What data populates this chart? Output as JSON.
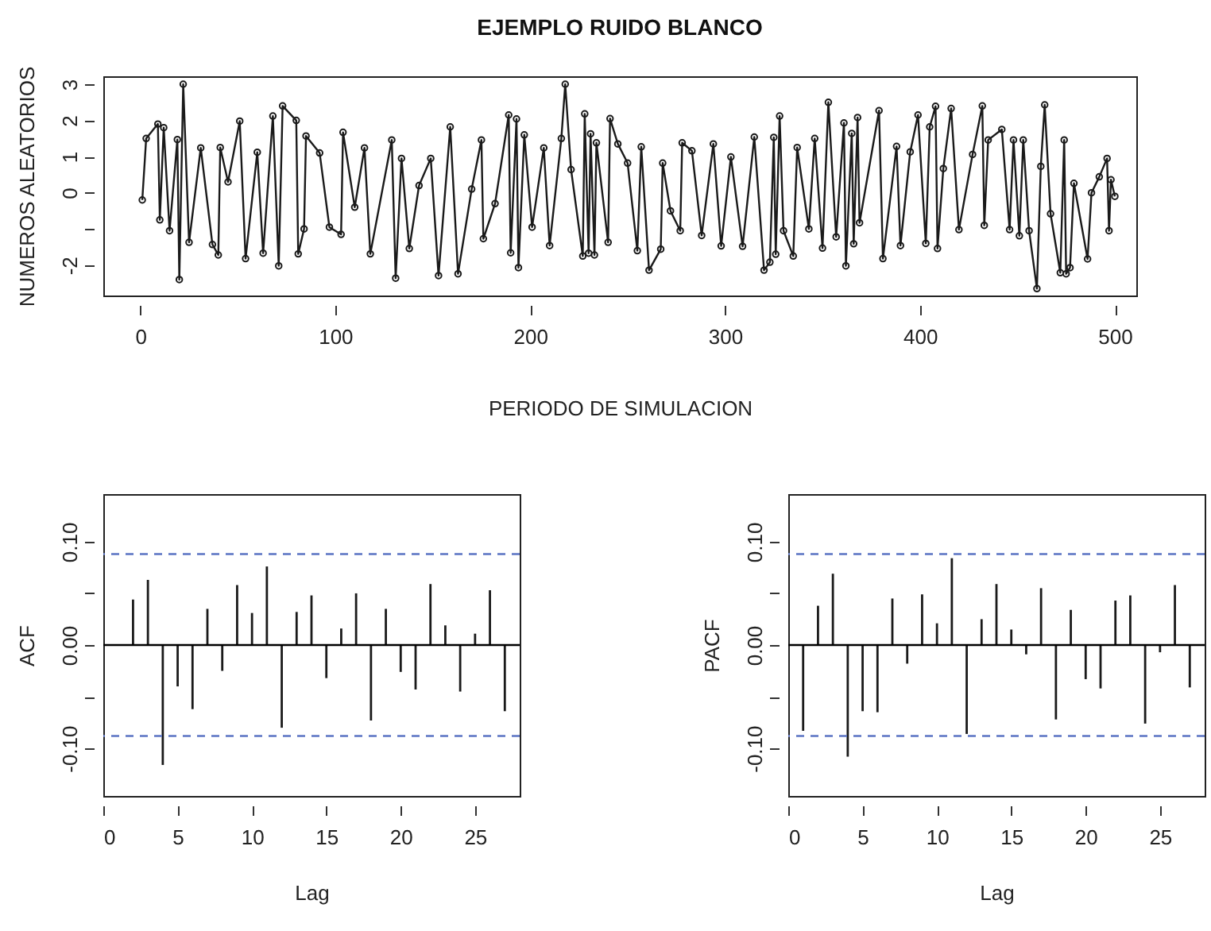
{
  "chart_data": [
    {
      "type": "line",
      "title": "EJEMPLO RUIDO BLANCO",
      "xlabel": "PERIODO DE SIMULACION",
      "ylabel": "NUMEROS ALEATORIOS",
      "color": "#1a1a1a",
      "marker": "circle",
      "line_style": "solid",
      "grid": false,
      "x": [
        1,
        3,
        9,
        10,
        12,
        15,
        19,
        20,
        22,
        25,
        31,
        37,
        40,
        41,
        45,
        51,
        54,
        60,
        63,
        68,
        71,
        73,
        80,
        81,
        84,
        85,
        92,
        97,
        103,
        104,
        110,
        115,
        118,
        129,
        131,
        134,
        138,
        143,
        149,
        153,
        159,
        163,
        170,
        175,
        176,
        182,
        189,
        190,
        193,
        194,
        197,
        201,
        207,
        210,
        216,
        218,
        221,
        227,
        228,
        230,
        231,
        233,
        234,
        240,
        241,
        245,
        250,
        255,
        257,
        261,
        267,
        268,
        272,
        277,
        278,
        283,
        288,
        294,
        298,
        303,
        309,
        315,
        320,
        323,
        325,
        326,
        328,
        330,
        335,
        337,
        343,
        346,
        350,
        353,
        357,
        361,
        362,
        365,
        366,
        368,
        369,
        379,
        381,
        388,
        390,
        395,
        399,
        403,
        405,
        408,
        409,
        412,
        416,
        420,
        427,
        432,
        433,
        435,
        442,
        446,
        448,
        451,
        453,
        456,
        460,
        462,
        464,
        467,
        472,
        474,
        475,
        477,
        479,
        486,
        488,
        492,
        496,
        497,
        498,
        500
      ],
      "values": [
        -0.2,
        1.5,
        1.9,
        -0.75,
        1.8,
        -1.05,
        1.47,
        -2.4,
        3.0,
        -1.37,
        1.24,
        -1.43,
        -1.72,
        1.25,
        0.3,
        1.98,
        -1.82,
        1.12,
        -1.67,
        2.12,
        -2.02,
        2.4,
        2.0,
        -1.69,
        -1.0,
        1.57,
        1.1,
        -0.95,
        -1.15,
        1.67,
        -0.4,
        1.24,
        -1.69,
        1.46,
        -2.36,
        0.95,
        -1.54,
        0.2,
        0.95,
        -2.29,
        1.82,
        -2.24,
        0.1,
        1.46,
        -1.27,
        -0.3,
        2.15,
        -1.66,
        2.04,
        -2.07,
        1.6,
        -0.95,
        1.24,
        -1.46,
        1.5,
        3.0,
        0.64,
        -1.75,
        2.18,
        -1.67,
        1.63,
        -1.72,
        1.38,
        -1.37,
        2.05,
        1.35,
        0.82,
        -1.6,
        1.27,
        -2.14,
        -1.56,
        0.82,
        -0.5,
        -1.05,
        1.38,
        1.16,
        -1.18,
        1.35,
        -1.47,
        0.99,
        -1.48,
        1.54,
        -2.14,
        -1.92,
        1.53,
        -1.7,
        2.12,
        -1.05,
        -1.75,
        1.25,
        -1.0,
        1.5,
        -1.53,
        2.5,
        -1.22,
        1.93,
        -2.02,
        1.64,
        -1.41,
        2.08,
        -0.83,
        2.27,
        -1.82,
        1.28,
        -1.46,
        1.13,
        2.15,
        -1.4,
        1.82,
        2.39,
        -1.54,
        0.67,
        2.33,
        -1.02,
        1.06,
        2.4,
        -0.9,
        1.46,
        1.75,
        -1.02,
        1.46,
        -1.19,
        1.46,
        -1.05,
        -2.65,
        0.73,
        2.43,
        -0.58,
        -2.21,
        1.46,
        -2.24,
        -2.07,
        0.26,
        -1.83,
        0,
        0.44,
        0.95,
        -1.05,
        0.36,
        -0.1
      ],
      "xlim": [
        -19,
        511
      ],
      "ylim": [
        -2.84,
        3.22
      ],
      "xticks": [
        0,
        100,
        200,
        300,
        400,
        500
      ],
      "yticks": [
        -2,
        {
          "value": -1,
          "label": null
        },
        0,
        1,
        2,
        3
      ]
    },
    {
      "type": "bar",
      "xlabel": "Lag",
      "ylabel": "ACF",
      "color": "#1a1a1a",
      "grid": false,
      "x": [
        2,
        3,
        4,
        5,
        6,
        7,
        8,
        9,
        10,
        11,
        12,
        13,
        14,
        15,
        16,
        17,
        18,
        19,
        20,
        21,
        22,
        23,
        24,
        25,
        26,
        27
      ],
      "values": [
        0.044,
        0.063,
        -0.116,
        -0.04,
        -0.062,
        0.035,
        -0.025,
        0.058,
        0.031,
        0.076,
        -0.08,
        0.032,
        0.048,
        -0.032,
        0.016,
        0.05,
        -0.073,
        0.035,
        -0.026,
        -0.043,
        0.059,
        0.019,
        -0.045,
        0.011,
        0.053,
        -0.064
      ],
      "xlim": [
        0,
        28
      ],
      "ylim": [
        -0.146,
        0.146
      ],
      "xticks": [
        0,
        5,
        10,
        15,
        20,
        25
      ],
      "yticks": [
        {
          "value": -0.1,
          "label": "-0.10"
        },
        {
          "value": -0.05,
          "label": null
        },
        {
          "value": 0,
          "label": "0.00"
        },
        {
          "value": 0.05,
          "label": null
        },
        {
          "value": 0.1,
          "label": "0.10"
        }
      ],
      "ref_lines": [
        {
          "axis": "y",
          "value": 0.088,
          "color": "#5b74c4",
          "line_style": "dashed"
        },
        {
          "axis": "y",
          "value": -0.088,
          "color": "#5b74c4",
          "line_style": "dashed"
        },
        {
          "axis": "y",
          "value": 0,
          "color": "#000000",
          "line_style": "solid"
        }
      ]
    },
    {
      "type": "bar",
      "xlabel": "Lag",
      "ylabel": "PACF",
      "color": "#1a1a1a",
      "grid": false,
      "x": [
        1,
        2,
        3,
        4,
        5,
        6,
        7,
        8,
        9,
        10,
        11,
        12,
        13,
        14,
        15,
        16,
        17,
        18,
        19,
        20,
        21,
        22,
        23,
        24,
        25,
        26,
        27
      ],
      "values": [
        -0.083,
        0.038,
        0.069,
        -0.108,
        -0.064,
        -0.065,
        0.045,
        -0.018,
        0.049,
        0.021,
        0.084,
        -0.086,
        0.025,
        0.059,
        0.015,
        -0.009,
        0.055,
        -0.072,
        0.034,
        -0.033,
        -0.042,
        0.043,
        0.048,
        -0.076,
        -0.007,
        0.058,
        -0.041
      ],
      "xlim": [
        0,
        28
      ],
      "ylim": [
        -0.146,
        0.146
      ],
      "xticks": [
        0,
        5,
        10,
        15,
        20,
        25
      ],
      "yticks": [
        {
          "value": -0.1,
          "label": "-0.10"
        },
        {
          "value": -0.05,
          "label": null
        },
        {
          "value": 0,
          "label": "0.00"
        },
        {
          "value": 0.05,
          "label": null
        },
        {
          "value": 0.1,
          "label": "0.10"
        }
      ],
      "ref_lines": [
        {
          "axis": "y",
          "value": 0.088,
          "color": "#5b74c4",
          "line_style": "dashed"
        },
        {
          "axis": "y",
          "value": -0.088,
          "color": "#5b74c4",
          "line_style": "dashed"
        },
        {
          "axis": "y",
          "value": 0,
          "color": "#000000",
          "line_style": "solid"
        }
      ]
    }
  ]
}
